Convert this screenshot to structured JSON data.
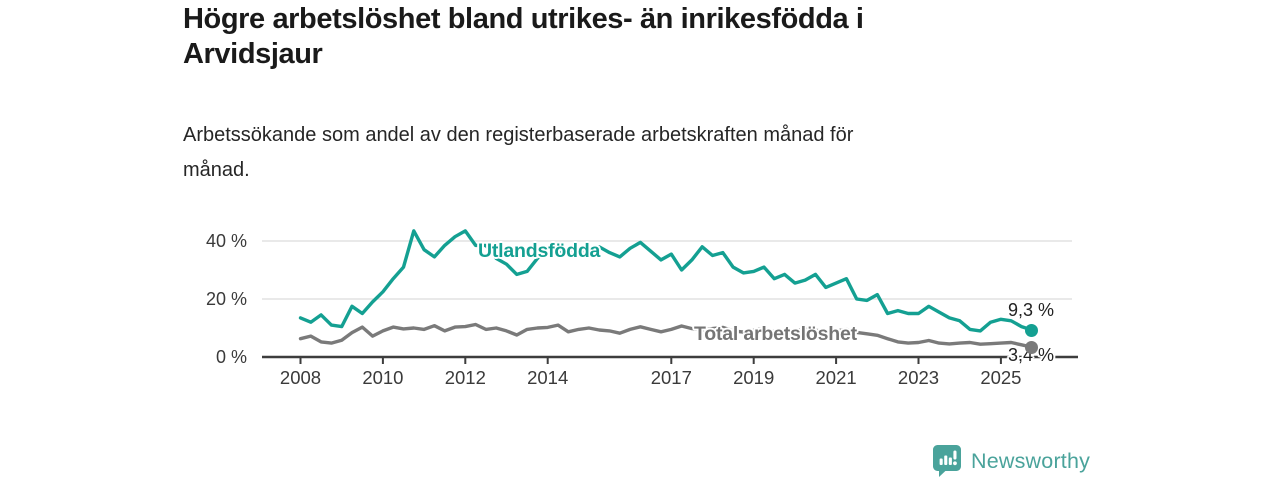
{
  "header": {
    "title": "Högre arbetslöshet bland utrikes- än inrikesfödda i\nArvidsjaur",
    "subtitle": "Arbetssökande som andel av den registerbaserade arbetskraften månad för\nmånad."
  },
  "colors": {
    "accent_teal": "#14a092",
    "series_gray": "#7a7a7a",
    "axis": "#3d3d3d",
    "gridline": "#dcdcdc",
    "logo_teal": "#4aa39b"
  },
  "chart_data": {
    "type": "line",
    "title": "Högre arbetslöshet bland utrikes- än inrikesfödda i Arvidsjaur",
    "subtitle": "Arbetssökande som andel av den registerbaserade arbetskraften månad för månad.",
    "xlabel": "",
    "ylabel": "",
    "grid": "horizontal",
    "legend_position": "inline",
    "x_start": 2008.0,
    "x_step": 0.25,
    "x_end": 2025.75,
    "ylim": [
      0,
      46
    ],
    "yticks": [
      {
        "value": 0,
        "label": "0 %"
      },
      {
        "value": 20,
        "label": "20 %"
      },
      {
        "value": 40,
        "label": "40 %"
      }
    ],
    "xticks": [
      {
        "year": 2008,
        "label": "2008"
      },
      {
        "year": 2010,
        "label": "2010"
      },
      {
        "year": 2012,
        "label": "2012"
      },
      {
        "year": 2014,
        "label": "2014"
      },
      {
        "year": 2017,
        "label": "2017"
      },
      {
        "year": 2019,
        "label": "2019"
      },
      {
        "year": 2021,
        "label": "2021"
      },
      {
        "year": 2023,
        "label": "2023"
      },
      {
        "year": 2025,
        "label": "2025"
      }
    ],
    "series": [
      {
        "name": "Utlandsfödda",
        "label": "Utlandsfödda",
        "color": "#14a092",
        "end_label": "9,3 %",
        "end_value": 9.3,
        "values": [
          13.5,
          12,
          14.5,
          11,
          10.5,
          17.5,
          15,
          19,
          22.5,
          27,
          31,
          43.5,
          37,
          34.5,
          38.5,
          41.5,
          43.5,
          38.5,
          38.5,
          34,
          32,
          28.5,
          29.5,
          34,
          36.5,
          35.5,
          37.5,
          36,
          36.5,
          38,
          36,
          34.5,
          37.5,
          39.5,
          36.5,
          33.5,
          35.5,
          30,
          33.5,
          38,
          35,
          36,
          31,
          29,
          29.5,
          31,
          27,
          28.5,
          25.5,
          26.5,
          28.5,
          24,
          25.5,
          27,
          20,
          19.5,
          21.5,
          15,
          16,
          15,
          15,
          17.5,
          15.5,
          13.5,
          12.5,
          9.5,
          9,
          12,
          13,
          12.5,
          10.5,
          9.3
        ]
      },
      {
        "name": "Total arbetslöshet",
        "label": "Total arbetslöshet",
        "color": "#7a7a7a",
        "end_label": "3,4 %",
        "end_value": 3.4,
        "values": [
          6.3,
          7.2,
          5.2,
          4.8,
          5.8,
          8.4,
          10.3,
          7.2,
          9,
          10.3,
          9.7,
          10,
          9.5,
          10.8,
          9,
          10.3,
          10.5,
          11.2,
          9.5,
          10,
          9,
          7.6,
          9.5,
          10,
          10.2,
          11,
          8.7,
          9.5,
          10,
          9.3,
          9,
          8.2,
          9.5,
          10.4,
          9.5,
          8.7,
          9.5,
          10.7,
          9.8,
          9.3,
          9.8,
          10.2,
          9,
          8.6,
          9.2,
          9.8,
          8.8,
          8.5,
          9,
          9.8,
          9.2,
          8.8,
          9,
          9.5,
          8.5,
          8,
          7.5,
          6.3,
          5.2,
          4.8,
          5,
          5.7,
          4.8,
          4.5,
          4.8,
          5,
          4.4,
          4.6,
          4.8,
          5,
          4.2,
          3.4
        ]
      }
    ]
  },
  "footer": {
    "brand": "Newsworthy"
  }
}
